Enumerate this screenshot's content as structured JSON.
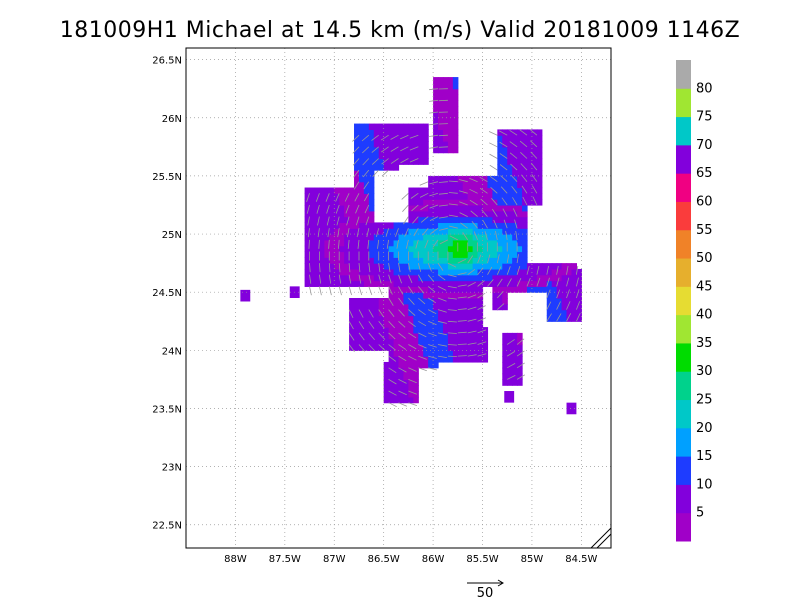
{
  "title": "181009H1 Michael at 14.5 km (m/s) Valid 20181009 1146Z",
  "map": {
    "lon_range": [
      -88.5,
      -84.2
    ],
    "lat_range": [
      22.3,
      26.6
    ],
    "lon_ticks": [
      {
        "value": -88.0,
        "label": "88W"
      },
      {
        "value": -87.5,
        "label": "87.5W"
      },
      {
        "value": -87.0,
        "label": "87W"
      },
      {
        "value": -86.5,
        "label": "86.5W"
      },
      {
        "value": -86.0,
        "label": "86W"
      },
      {
        "value": -85.5,
        "label": "85.5W"
      },
      {
        "value": -85.0,
        "label": "85W"
      },
      {
        "value": -84.5,
        "label": "84.5W"
      }
    ],
    "lat_ticks": [
      {
        "value": 22.5,
        "label": "22.5N"
      },
      {
        "value": 23.0,
        "label": "23N"
      },
      {
        "value": 23.5,
        "label": "23.5N"
      },
      {
        "value": 24.0,
        "label": "24N"
      },
      {
        "value": 24.5,
        "label": "24.5N"
      },
      {
        "value": 25.0,
        "label": "25N"
      },
      {
        "value": 25.5,
        "label": "25.5N"
      },
      {
        "value": 26.0,
        "label": "26N"
      },
      {
        "value": 26.5,
        "label": "26.5N"
      }
    ],
    "grid": "dotted",
    "center": {
      "lon": -85.8,
      "lat": 24.85
    },
    "wind_field": {
      "cell_deg": 0.05,
      "max_speed": 33
    }
  },
  "colorbar": {
    "bins": [
      {
        "min": 0,
        "max": 5,
        "color": "#a000c8"
      },
      {
        "min": 5,
        "max": 10,
        "color": "#8200dc"
      },
      {
        "min": 10,
        "max": 15,
        "color": "#1e3cff"
      },
      {
        "min": 15,
        "max": 20,
        "color": "#00a0ff"
      },
      {
        "min": 20,
        "max": 25,
        "color": "#00c8c8"
      },
      {
        "min": 25,
        "max": 30,
        "color": "#00d28c"
      },
      {
        "min": 30,
        "max": 35,
        "color": "#00dc00"
      },
      {
        "min": 35,
        "max": 40,
        "color": "#a0e632"
      },
      {
        "min": 40,
        "max": 45,
        "color": "#e6dc32"
      },
      {
        "min": 45,
        "max": 50,
        "color": "#e6af2d"
      },
      {
        "min": 50,
        "max": 55,
        "color": "#f08228"
      },
      {
        "min": 55,
        "max": 60,
        "color": "#fa3c3c"
      },
      {
        "min": 60,
        "max": 65,
        "color": "#f00082"
      },
      {
        "min": 65,
        "max": 70,
        "color": "#8200dc"
      },
      {
        "min": 70,
        "max": 75,
        "color": "#00c8c8"
      },
      {
        "min": 75,
        "max": 80,
        "color": "#a0e632"
      },
      {
        "min": 80,
        "max": 85,
        "color": "#aaaaaa"
      }
    ],
    "labels": [
      "5",
      "10",
      "15",
      "20",
      "25",
      "30",
      "35",
      "40",
      "45",
      "50",
      "55",
      "60",
      "65",
      "70",
      "75",
      "80"
    ]
  },
  "reference_vector": {
    "label": "50",
    "speed": 50
  }
}
